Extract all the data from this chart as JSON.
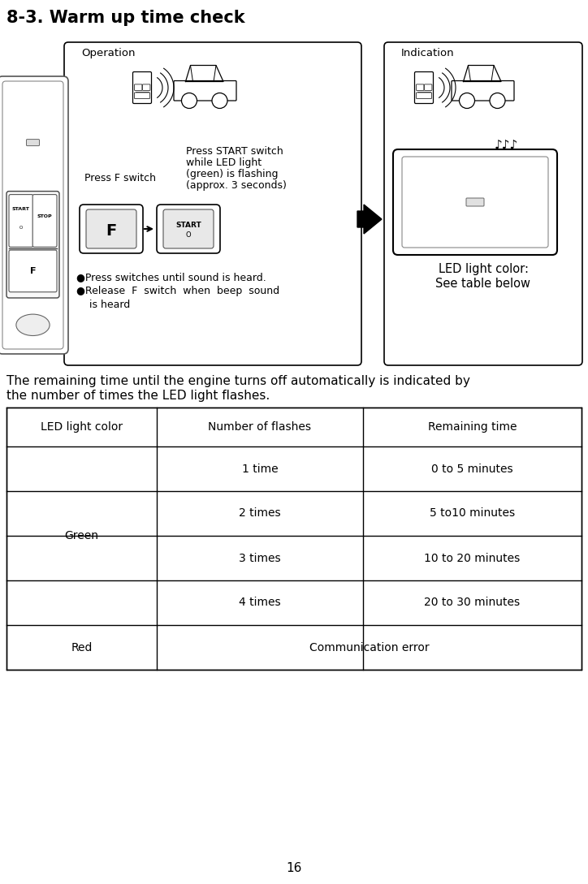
{
  "title": "8-3. Warm up time check",
  "title_fontsize": 15,
  "title_fontweight": "bold",
  "body_text_1": "The remaining time until the engine turns off automatically is indicated by",
  "body_text_2": "the number of times the LED light flashes.",
  "body_fontsize": 11,
  "operation_label": "Operation",
  "indication_label": "Indication",
  "press_f_text": "Press F switch",
  "press_start_line1": "Press START switch",
  "press_start_line2": "while LED light",
  "press_start_line3": "(green) is flashing",
  "press_start_line4": "(approx. 3 seconds)",
  "bullet1": "●Press switches until sound is heard.",
  "bullet2a": "●Release  F  switch  when  beep  sound",
  "bullet2b": "    is heard",
  "led_color_text": "LED light color:",
  "see_table_text": "See table below",
  "table_header": [
    "LED light color",
    "Number of flashes",
    "Remaining time"
  ],
  "flash_rows": [
    [
      "1 time",
      "0 to 5 minutes"
    ],
    [
      "2 times",
      "5 to10 minutes"
    ],
    [
      "3 times",
      "10 to 20 minutes"
    ],
    [
      "4 times",
      "20 to 30 minutes"
    ]
  ],
  "green_label": "Green",
  "red_label": "Red",
  "comm_error": "Communication error",
  "page_number": "16",
  "bg_color": "#ffffff",
  "text_color": "#000000",
  "table_fontsize": 10,
  "annot_fontsize": 9,
  "label_fontsize": 9.5
}
